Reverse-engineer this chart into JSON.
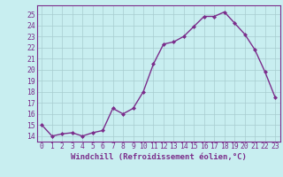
{
  "x": [
    0,
    1,
    2,
    3,
    4,
    5,
    6,
    7,
    8,
    9,
    10,
    11,
    12,
    13,
    14,
    15,
    16,
    17,
    18,
    19,
    20,
    21,
    22,
    23
  ],
  "y": [
    15,
    14,
    14.2,
    14.3,
    14,
    14.3,
    14.5,
    16.5,
    16,
    16.5,
    18,
    20.5,
    22.3,
    22.5,
    23,
    23.9,
    24.8,
    24.8,
    25.2,
    24.2,
    23.2,
    21.8,
    19.8,
    17.5
  ],
  "line_color": "#7B2D8B",
  "marker": "D",
  "marker_size": 2.0,
  "bg_color": "#c8eef0",
  "grid_color": "#a8ccd0",
  "xlabel": "Windchill (Refroidissement éolien,°C)",
  "ylim": [
    13.5,
    25.8
  ],
  "xlim": [
    -0.5,
    23.5
  ],
  "yticks": [
    14,
    15,
    16,
    17,
    18,
    19,
    20,
    21,
    22,
    23,
    24,
    25
  ],
  "xticks": [
    0,
    1,
    2,
    3,
    4,
    5,
    6,
    7,
    8,
    9,
    10,
    11,
    12,
    13,
    14,
    15,
    16,
    17,
    18,
    19,
    20,
    21,
    22,
    23
  ],
  "xlabel_fontsize": 6.5,
  "tick_fontsize": 5.8,
  "line_width": 1.0
}
